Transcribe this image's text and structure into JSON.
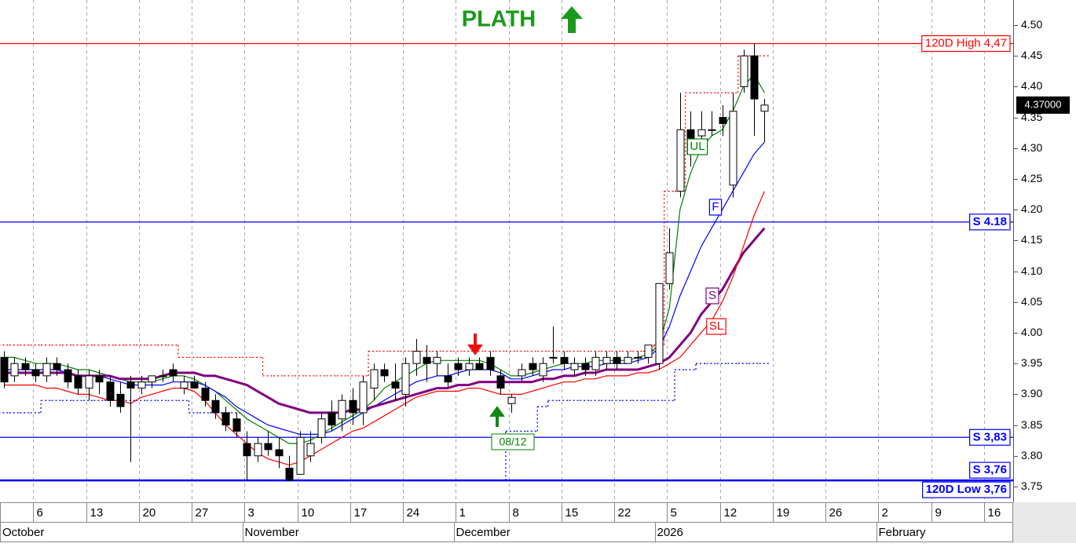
{
  "chart_data": {
    "type": "candlestick",
    "title": "PLATH",
    "categories": [
      null,
      null,
      null,
      "6",
      null,
      null,
      null,
      null,
      "13",
      null,
      null,
      null,
      null,
      "20",
      null,
      null,
      null,
      null,
      "27",
      null,
      null,
      null,
      null,
      "3",
      null,
      null,
      null,
      null,
      "10",
      null,
      null,
      null,
      null,
      "17",
      null,
      null,
      null,
      null,
      "24",
      null,
      null,
      null,
      null,
      "1",
      null,
      null,
      null,
      null,
      "8",
      null,
      null,
      null,
      null,
      "15",
      null,
      null,
      null,
      null,
      "22",
      null,
      null,
      null,
      null,
      "5",
      null,
      null,
      null,
      null,
      "12",
      null,
      null,
      null,
      null,
      "19",
      null,
      null,
      null,
      null,
      "26",
      null,
      null,
      null,
      null,
      "2",
      null,
      null,
      null,
      null,
      "9",
      null,
      null,
      null,
      null,
      "16",
      null,
      null
    ],
    "month_labels": [
      "October",
      null,
      null,
      null,
      null,
      null,
      null,
      null,
      null,
      null,
      null,
      null,
      null,
      null,
      null,
      null,
      null,
      null,
      null,
      null,
      null,
      null,
      null,
      "November",
      null,
      null,
      null,
      null,
      null,
      null,
      null,
      null,
      null,
      null,
      null,
      null,
      null,
      null,
      null,
      null,
      null,
      null,
      null,
      "December",
      null,
      null,
      null,
      null,
      null,
      null,
      null,
      null,
      null,
      null,
      null,
      null,
      null,
      null,
      null,
      null,
      null,
      null,
      "2026",
      null,
      null,
      null,
      null,
      null,
      null,
      null,
      null,
      null,
      null,
      null,
      null,
      null,
      null,
      null,
      null,
      null,
      null,
      null,
      null,
      "February",
      null,
      null,
      null,
      null,
      null,
      null,
      null,
      null,
      null,
      null,
      null,
      null
    ],
    "open": [
      3.96,
      3.93,
      3.95,
      3.94,
      3.93,
      3.95,
      3.94,
      3.93,
      3.91,
      3.93,
      3.92,
      3.9,
      3.92,
      3.91,
      3.92,
      3.93,
      3.94,
      3.91,
      3.92,
      3.91,
      3.89,
      3.87,
      3.86,
      3.82,
      3.8,
      3.82,
      3.81,
      3.78,
      3.77,
      3.8,
      3.83,
      3.87,
      3.86,
      3.89,
      3.87,
      3.91,
      3.94,
      3.92,
      3.9,
      3.95,
      3.96,
      3.95,
      3.93,
      3.95,
      3.94,
      3.95,
      3.96,
      3.93,
      3.885,
      3.93,
      3.95,
      3.93,
      3.96,
      3.96,
      3.94,
      3.95,
      3.94,
      3.95,
      3.96,
      3.95,
      3.96,
      3.96,
      3.95,
      4.08,
      4.23,
      4.33,
      4.32,
      4.33,
      4.35,
      4.24,
      4.4,
      4.45,
      4.36,
      null,
      null,
      null,
      null,
      null,
      null,
      null,
      null,
      null,
      null,
      null,
      null,
      null,
      null,
      null,
      null,
      null,
      null,
      null,
      null,
      null,
      null,
      null
    ],
    "high": [
      3.97,
      3.96,
      3.96,
      3.95,
      3.96,
      3.96,
      3.95,
      3.94,
      3.94,
      3.94,
      3.93,
      3.92,
      3.93,
      3.93,
      3.93,
      3.94,
      3.95,
      3.93,
      3.93,
      3.92,
      3.9,
      3.88,
      3.87,
      3.84,
      3.83,
      3.84,
      3.83,
      3.8,
      3.84,
      3.84,
      3.87,
      3.89,
      3.9,
      3.91,
      3.93,
      3.95,
      3.95,
      3.95,
      3.96,
      3.99,
      3.98,
      3.97,
      3.95,
      3.96,
      3.96,
      3.96,
      3.97,
      3.94,
      3.9,
      3.95,
      3.96,
      3.96,
      4.01,
      3.97,
      3.96,
      3.96,
      3.97,
      3.97,
      3.97,
      3.97,
      3.97,
      3.98,
      4.08,
      4.17,
      4.39,
      4.36,
      4.36,
      4.36,
      4.37,
      4.39,
      4.46,
      4.47,
      4.38,
      null,
      null,
      null,
      null,
      null,
      null,
      null,
      null,
      null,
      null,
      null,
      null,
      null,
      null,
      null,
      null,
      null,
      null,
      null,
      null,
      null,
      null,
      null
    ],
    "low": [
      3.91,
      3.92,
      3.93,
      3.92,
      3.92,
      3.93,
      3.91,
      3.9,
      3.89,
      3.9,
      3.88,
      3.87,
      3.79,
      3.9,
      3.91,
      3.92,
      3.92,
      3.9,
      3.91,
      3.88,
      3.86,
      3.84,
      3.83,
      3.76,
      3.79,
      3.8,
      3.78,
      3.76,
      3.77,
      3.79,
      3.82,
      3.84,
      3.84,
      3.85,
      3.85,
      3.89,
      3.92,
      3.89,
      3.88,
      3.93,
      3.92,
      3.93,
      3.91,
      3.93,
      3.93,
      3.94,
      3.93,
      3.9,
      3.87,
      3.92,
      3.93,
      3.92,
      3.95,
      3.94,
      3.93,
      3.93,
      3.93,
      3.94,
      3.94,
      3.95,
      3.95,
      3.95,
      3.94,
      4.07,
      4.22,
      4.27,
      4.3,
      4.32,
      4.32,
      4.22,
      4.39,
      4.32,
      4.31,
      null,
      null,
      null,
      null,
      null,
      null,
      null,
      null,
      null,
      null,
      null,
      null,
      null,
      null,
      null,
      null,
      null,
      null,
      null,
      null,
      null,
      null,
      null
    ],
    "close": [
      3.92,
      3.95,
      3.94,
      3.93,
      3.95,
      3.94,
      3.92,
      3.91,
      3.93,
      3.92,
      3.89,
      3.88,
      3.91,
      3.92,
      3.93,
      3.93,
      3.93,
      3.92,
      3.91,
      3.89,
      3.87,
      3.85,
      3.84,
      3.8,
      3.82,
      3.81,
      3.8,
      3.76,
      3.83,
      3.82,
      3.86,
      3.85,
      3.89,
      3.87,
      3.92,
      3.94,
      3.93,
      3.91,
      3.95,
      3.97,
      3.95,
      3.96,
      3.92,
      3.94,
      3.95,
      3.94,
      3.94,
      3.91,
      3.895,
      3.94,
      3.94,
      3.95,
      3.96,
      3.95,
      3.95,
      3.94,
      3.96,
      3.96,
      3.95,
      3.96,
      3.96,
      3.98,
      4.08,
      4.13,
      4.33,
      4.29,
      4.33,
      4.33,
      4.34,
      4.36,
      4.45,
      4.38,
      4.37,
      null,
      null,
      null,
      null,
      null,
      null,
      null,
      null,
      null,
      null,
      null,
      null,
      null,
      null,
      null,
      null,
      null,
      null,
      null,
      null,
      null,
      null,
      null
    ],
    "up_color": "#ffffff",
    "down_color": "#000000",
    "series": [
      {
        "name": "UL",
        "color": "#008000",
        "values": [
          3.96,
          3.96,
          3.955,
          3.95,
          3.95,
          3.95,
          3.945,
          3.94,
          3.94,
          3.935,
          3.93,
          3.925,
          3.92,
          3.92,
          3.92,
          3.925,
          3.93,
          3.93,
          3.925,
          3.915,
          3.905,
          3.89,
          3.875,
          3.86,
          3.85,
          3.84,
          3.83,
          3.82,
          3.82,
          3.825,
          3.835,
          3.845,
          3.855,
          3.865,
          3.875,
          3.89,
          3.91,
          3.92,
          3.93,
          3.94,
          3.95,
          3.955,
          3.955,
          3.955,
          3.955,
          3.955,
          3.95,
          3.94,
          3.93,
          3.93,
          3.935,
          3.94,
          3.945,
          3.95,
          3.95,
          3.95,
          3.955,
          3.955,
          3.955,
          3.955,
          3.96,
          3.965,
          3.98,
          4.04,
          4.2,
          4.26,
          4.3,
          4.32,
          4.33,
          4.36,
          4.4,
          4.42,
          4.39,
          null,
          null,
          null,
          null,
          null,
          null,
          null,
          null,
          null,
          null,
          null,
          null,
          null,
          null,
          null,
          null,
          null,
          null,
          null,
          null,
          null,
          null,
          null
        ]
      },
      {
        "name": "F",
        "color": "#0000ff",
        "values": [
          3.94,
          3.94,
          3.94,
          3.94,
          3.94,
          3.94,
          3.935,
          3.93,
          3.93,
          3.93,
          3.925,
          3.92,
          3.915,
          3.915,
          3.915,
          3.915,
          3.92,
          3.92,
          3.92,
          3.915,
          3.905,
          3.895,
          3.88,
          3.87,
          3.86,
          3.85,
          3.845,
          3.84,
          3.835,
          3.835,
          3.835,
          3.84,
          3.85,
          3.86,
          3.87,
          3.88,
          3.89,
          3.9,
          3.91,
          3.92,
          3.925,
          3.93,
          3.93,
          3.935,
          3.94,
          3.94,
          3.94,
          3.935,
          3.925,
          3.925,
          3.93,
          3.935,
          3.94,
          3.94,
          3.945,
          3.945,
          3.945,
          3.95,
          3.95,
          3.95,
          3.955,
          3.96,
          3.975,
          4.01,
          4.06,
          4.1,
          4.14,
          4.17,
          4.2,
          4.23,
          4.26,
          4.29,
          4.31,
          null,
          null,
          null,
          null,
          null,
          null,
          null,
          null,
          null,
          null,
          null,
          null,
          null,
          null,
          null,
          null,
          null,
          null,
          null,
          null,
          null,
          null,
          null
        ]
      },
      {
        "name": "S",
        "color": "#800080",
        "values": [
          3.935,
          3.935,
          3.935,
          3.935,
          3.935,
          3.935,
          3.935,
          3.93,
          3.93,
          3.93,
          3.93,
          3.925,
          3.925,
          3.925,
          3.925,
          3.93,
          3.935,
          3.935,
          3.935,
          3.93,
          3.93,
          3.925,
          3.92,
          3.915,
          3.905,
          3.895,
          3.885,
          3.88,
          3.875,
          3.87,
          3.87,
          3.87,
          3.87,
          3.875,
          3.875,
          3.88,
          3.885,
          3.89,
          3.895,
          3.9,
          3.905,
          3.91,
          3.91,
          3.915,
          3.915,
          3.92,
          3.92,
          3.92,
          3.92,
          3.92,
          3.92,
          3.925,
          3.925,
          3.93,
          3.93,
          3.935,
          3.935,
          3.94,
          3.94,
          3.94,
          3.94,
          3.945,
          3.95,
          3.96,
          3.98,
          4.0,
          4.03,
          4.05,
          4.07,
          4.1,
          4.13,
          4.15,
          4.17,
          null,
          null,
          null,
          null,
          null,
          null,
          null,
          null,
          null,
          null,
          null,
          null,
          null,
          null,
          null,
          null,
          null,
          null,
          null,
          null,
          null,
          null,
          null
        ]
      },
      {
        "name": "SL",
        "color": "#ff0000",
        "values": [
          3.915,
          3.915,
          3.915,
          3.915,
          3.91,
          3.91,
          3.905,
          3.9,
          3.9,
          3.895,
          3.89,
          3.89,
          3.885,
          3.895,
          3.9,
          3.905,
          3.91,
          3.91,
          3.905,
          3.89,
          3.87,
          3.85,
          3.835,
          3.82,
          3.805,
          3.795,
          3.79,
          3.785,
          3.79,
          3.8,
          3.81,
          3.82,
          3.83,
          3.84,
          3.845,
          3.855,
          3.865,
          3.875,
          3.885,
          3.895,
          3.9,
          3.905,
          3.905,
          3.905,
          3.91,
          3.91,
          3.905,
          3.9,
          3.9,
          3.9,
          3.905,
          3.91,
          3.915,
          3.92,
          3.92,
          3.925,
          3.925,
          3.93,
          3.93,
          3.93,
          3.935,
          3.935,
          3.94,
          3.95,
          3.96,
          3.98,
          4.0,
          4.02,
          4.05,
          4.09,
          4.14,
          4.19,
          4.23,
          null,
          null,
          null,
          null,
          null,
          null,
          null,
          null,
          null,
          null,
          null,
          null,
          null,
          null,
          null,
          null,
          null,
          null,
          null,
          null,
          null,
          null,
          null
        ]
      }
    ],
    "upper_band": {
      "color": "#ff0000",
      "values": [
        3.98,
        3.98,
        3.98,
        3.98,
        3.98,
        3.98,
        3.98,
        3.98,
        3.98,
        3.98,
        3.98,
        3.98,
        3.98,
        3.98,
        3.98,
        3.98,
        3.98,
        3.96,
        3.96,
        3.96,
        3.96,
        3.96,
        3.96,
        3.96,
        3.96,
        3.93,
        3.93,
        3.93,
        3.93,
        3.93,
        3.93,
        3.93,
        3.93,
        3.93,
        3.93,
        3.97,
        3.97,
        3.97,
        3.97,
        3.97,
        3.97,
        3.97,
        3.97,
        3.97,
        3.97,
        3.97,
        3.97,
        3.97,
        3.97,
        3.97,
        3.97,
        3.97,
        3.97,
        3.97,
        3.97,
        3.97,
        3.97,
        3.97,
        3.97,
        3.97,
        3.97,
        3.97,
        3.98,
        4.23,
        4.23,
        4.39,
        4.39,
        4.39,
        4.39,
        4.39,
        4.45,
        4.45,
        4.45,
        null,
        null,
        null,
        null,
        null,
        null,
        null,
        null,
        null,
        null,
        null,
        null,
        null,
        null,
        null,
        null,
        null,
        null,
        null,
        null,
        null,
        null,
        null
      ]
    },
    "lower_band": {
      "color": "#0000ff",
      "values": [
        3.87,
        3.87,
        3.87,
        3.87,
        3.89,
        3.89,
        3.89,
        3.89,
        3.89,
        3.89,
        3.89,
        3.89,
        3.89,
        3.89,
        3.89,
        3.89,
        3.89,
        3.89,
        3.87,
        3.87,
        3.87,
        3.87,
        3.87,
        null,
        null,
        null,
        null,
        null,
        null,
        null,
        null,
        null,
        null,
        null,
        null,
        null,
        null,
        null,
        null,
        null,
        null,
        null,
        null,
        null,
        null,
        null,
        null,
        3.76,
        3.84,
        3.84,
        3.84,
        3.88,
        3.89,
        3.89,
        3.89,
        3.89,
        3.89,
        3.89,
        3.89,
        3.89,
        3.89,
        3.89,
        3.89,
        3.89,
        3.94,
        3.94,
        3.95,
        3.95,
        3.95,
        3.95,
        3.95,
        3.95,
        3.95,
        null,
        null,
        null,
        null,
        null,
        null,
        null,
        null,
        null,
        null,
        null,
        null,
        null,
        null,
        null,
        null,
        null,
        null,
        null,
        null,
        null,
        null,
        null
      ]
    },
    "levels": [
      {
        "value": 4.47,
        "label": "120D High 4,47",
        "color": "#ff0000"
      },
      {
        "value": 4.18,
        "label": "S 4.18",
        "color": "#0000ff"
      },
      {
        "value": 3.83,
        "label": "S 3,83",
        "color": "#0000ff"
      },
      {
        "value": 3.76,
        "label": "S 3,76",
        "color": "#0000ff"
      },
      {
        "value": 3.76,
        "label": "120D Low 3,76",
        "color": "#0000ff"
      }
    ],
    "last_price": {
      "value": 4.37,
      "label": "4.37000"
    },
    "annotation": "08/12",
    "ylim": [
      3.7245,
      4.5408
    ],
    "yticks": [
      {
        "value": 3.75,
        "label": "3.75"
      },
      {
        "value": 3.8,
        "label": "3.80"
      },
      3.85,
      {
        "value": 3.9,
        "label": "3.90"
      },
      3.95,
      {
        "value": 4.0,
        "label": "4.00"
      },
      4.05,
      {
        "value": 4.1,
        "label": "4.10"
      },
      4.15,
      {
        "value": 4.2,
        "label": "4.20"
      },
      4.25,
      {
        "value": 4.3,
        "label": "4.30"
      },
      4.35,
      {
        "value": 4.4,
        "label": "4.40"
      },
      4.45,
      {
        "value": 4.5,
        "label": "4.50"
      }
    ],
    "grid": true
  }
}
